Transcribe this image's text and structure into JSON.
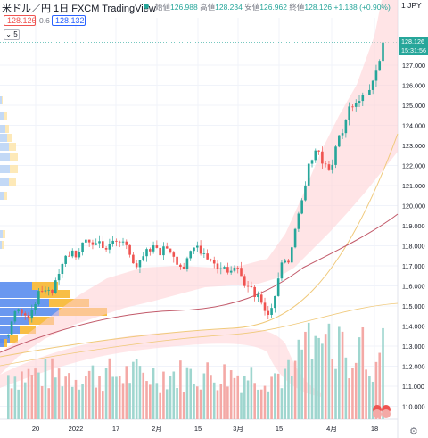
{
  "header": {
    "title": "米ドル／円  1日  FXCM  TradingView",
    "ohlc_label_open": "始値",
    "ohlc_open": "126.988",
    "ohlc_label_high": "高値",
    "ohlc_high": "128.234",
    "ohlc_label_low": "安値",
    "ohlc_low": "126.962",
    "ohlc_label_close": "終値",
    "ohlc_close": "128.126",
    "ohlc_change": "+1.138 (+0.90%)",
    "currency": "1 JPY"
  },
  "legend": {
    "bid": "128.126",
    "spread": "0.6",
    "ask": "128.132",
    "collapse": "5"
  },
  "price_tag": {
    "price": "128.126",
    "countdown": "15:31:56"
  },
  "colors": {
    "up": "#26a69a",
    "down": "#ef5350",
    "band_fill": "#ffcdd2",
    "ma_orange": "#f0c97a",
    "ma_red": "#c25a6a",
    "vol_up": "#9fd6cf",
    "vol_down": "#f4a9a6",
    "vp_blue": "#2962ff",
    "vp_yellow": "#f7b731"
  },
  "chart_data": {
    "type": "candlestick",
    "y_axis_ticks": [
      "127.000",
      "126.000",
      "125.000",
      "124.000",
      "123.000",
      "122.000",
      "121.000",
      "120.000",
      "119.000",
      "118.000",
      "117.000",
      "116.000",
      "115.000",
      "114.000",
      "113.000",
      "112.000",
      "111.000",
      "110.000"
    ],
    "x_axis_ticks": [
      "20",
      "2022",
      "17",
      "2月",
      "15",
      "3月",
      "15",
      "4月",
      "18"
    ],
    "ylim": [
      109.8,
      128.5
    ],
    "grid": true
  }
}
